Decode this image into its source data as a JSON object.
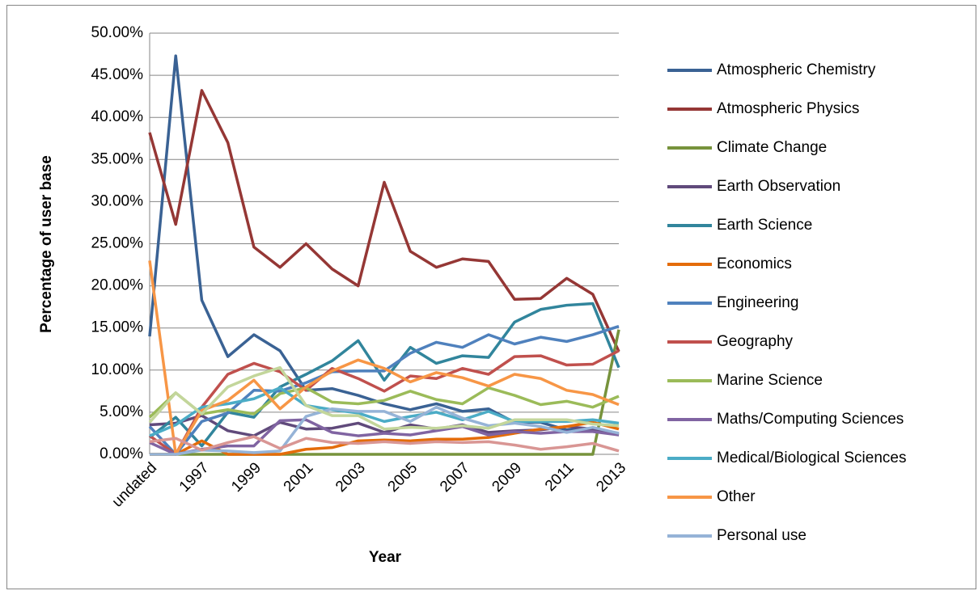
{
  "chart_data": {
    "type": "line",
    "y_label": "Percentage of user base",
    "x_label": "Year",
    "categories": [
      "undated",
      null,
      "1997",
      null,
      "1999",
      null,
      "2001",
      null,
      "2003",
      null,
      "2005",
      null,
      "2007",
      null,
      "2009",
      null,
      "2011",
      null,
      "2013"
    ],
    "ylim": [
      0,
      50
    ],
    "yticks": [
      {
        "value": 0,
        "label": "0.00%"
      },
      {
        "value": 5,
        "label": "5.00%"
      },
      {
        "value": 10,
        "label": "10.00%"
      },
      {
        "value": 15,
        "label": "15.00%"
      },
      {
        "value": 20,
        "label": "20.00%"
      },
      {
        "value": 25,
        "label": "25.00%"
      },
      {
        "value": 30,
        "label": "30.00%"
      },
      {
        "value": 35,
        "label": "35.00%"
      },
      {
        "value": 40,
        "label": "40.00%"
      },
      {
        "value": 45,
        "label": "45.00%"
      },
      {
        "value": 50,
        "label": "50.00%"
      }
    ],
    "grid": true,
    "legend": "right",
    "series": [
      {
        "name": "Atmospheric Chemistry",
        "color": "#3a6294",
        "values": [
          14,
          47.3,
          18.3,
          11.6,
          14.2,
          12.3,
          7.6,
          7.8,
          7.0,
          6.0,
          5.3,
          6.0,
          5.1,
          5.4,
          3.8,
          3.8,
          2.9,
          2.9,
          2.3
        ]
      },
      {
        "name": "Atmospheric Physics",
        "color": "#953735",
        "values": [
          38.2,
          27.3,
          43.2,
          37.0,
          24.6,
          22.2,
          25.0,
          22.0,
          20.0,
          32.3,
          24.1,
          22.2,
          23.2,
          22.9,
          18.4,
          18.5,
          20.9,
          19.0,
          12.2
        ]
      },
      {
        "name": "Climate Change",
        "color": "#77933c",
        "values": [
          0,
          0,
          0,
          0,
          0,
          0,
          0,
          0,
          0,
          0,
          0,
          0,
          0,
          0,
          0,
          0,
          0,
          0,
          14.8
        ]
      },
      {
        "name": "Earth Observation",
        "color": "#604a7b",
        "values": [
          3.5,
          3.7,
          4.6,
          2.8,
          2.2,
          3.8,
          3.0,
          3.1,
          3.7,
          2.6,
          3.5,
          3.0,
          3.5,
          2.6,
          2.8,
          2.9,
          3.3,
          3.0,
          2.5
        ]
      },
      {
        "name": "Earth Science",
        "color": "#31859c",
        "values": [
          2.0,
          4.4,
          1.0,
          5.0,
          4.4,
          8.0,
          9.5,
          11.1,
          13.5,
          8.8,
          12.7,
          10.8,
          11.7,
          11.5,
          15.7,
          17.2,
          17.7,
          17.9,
          10.3
        ]
      },
      {
        "name": "Economics",
        "color": "#e46c0a",
        "values": [
          0,
          0,
          1.6,
          0,
          0,
          0,
          0.6,
          0.8,
          1.6,
          1.7,
          1.6,
          1.8,
          1.8,
          2.0,
          2.5,
          3.0,
          3.3,
          3.8,
          3.0
        ]
      },
      {
        "name": "Engineering",
        "color": "#4f81bd",
        "values": [
          3.3,
          0,
          3.9,
          4.9,
          7.6,
          7.5,
          8.5,
          9.8,
          9.9,
          9.9,
          12.0,
          13.3,
          12.7,
          14.2,
          13.1,
          13.9,
          13.4,
          14.2,
          15.2
        ]
      },
      {
        "name": "Geography",
        "color": "#c0504d",
        "values": [
          2.2,
          0,
          5.6,
          9.5,
          10.8,
          9.8,
          7.6,
          10.2,
          9.0,
          7.5,
          9.3,
          9.0,
          10.2,
          9.5,
          11.6,
          11.7,
          10.6,
          10.7,
          12.3
        ]
      },
      {
        "name": "Marine Science",
        "color": "#9bbb59",
        "values": [
          4.4,
          7.3,
          4.8,
          5.3,
          4.8,
          7.2,
          7.9,
          6.2,
          6.0,
          6.4,
          7.5,
          6.5,
          6.0,
          7.9,
          7.0,
          5.9,
          6.3,
          5.6,
          6.9
        ]
      },
      {
        "name": "Maths/Computing Sciences",
        "color": "#8064a2",
        "values": [
          1.4,
          0,
          0.6,
          1.0,
          1.0,
          4.0,
          4.1,
          2.6,
          2.2,
          2.5,
          2.3,
          2.8,
          3.3,
          2.3,
          2.7,
          2.5,
          2.7,
          2.7,
          2.3
        ]
      },
      {
        "name": "Medical/Biological Sciences",
        "color": "#4bacc6",
        "values": [
          2.2,
          3.5,
          5.6,
          6.0,
          6.6,
          7.9,
          5.8,
          5.3,
          4.9,
          3.9,
          4.5,
          5.0,
          4.1,
          5.1,
          3.9,
          3.9,
          3.9,
          4.1,
          3.7
        ]
      },
      {
        "name": "Other",
        "color": "#f79646",
        "values": [
          23.0,
          0,
          5.2,
          6.4,
          8.8,
          5.4,
          8.0,
          9.9,
          11.2,
          10.2,
          8.6,
          9.7,
          9.1,
          8.1,
          9.5,
          9.0,
          7.6,
          7.1,
          5.9
        ]
      },
      {
        "name": "Personal use",
        "color": "#95b3d7",
        "values": [
          0,
          0,
          0.5,
          0.4,
          0.2,
          0.4,
          4.5,
          5.4,
          5.1,
          5.1,
          3.9,
          5.6,
          4.3,
          3.4,
          3.7,
          3.3,
          2.6,
          3.2,
          2.5
        ]
      },
      {
        "color": "#d99694",
        "values": [
          1.5,
          1.9,
          0.5,
          1.4,
          2.1,
          0.7,
          1.9,
          1.4,
          1.3,
          1.5,
          1.3,
          1.5,
          1.4,
          1.5,
          1.1,
          0.6,
          0.9,
          1.3,
          0.4
        ]
      },
      {
        "color": "#c3d69b",
        "values": [
          3.8,
          7.3,
          4.8,
          8.0,
          9.3,
          10.3,
          5.8,
          4.6,
          4.6,
          3.0,
          3.2,
          3.1,
          3.4,
          3.1,
          4.1,
          4.1,
          4.1,
          3.6,
          3.4
        ]
      }
    ]
  }
}
